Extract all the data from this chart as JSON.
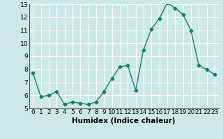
{
  "x": [
    0,
    1,
    2,
    3,
    4,
    5,
    6,
    7,
    8,
    9,
    10,
    11,
    12,
    13,
    14,
    15,
    16,
    17,
    18,
    19,
    20,
    21,
    22,
    23
  ],
  "y": [
    7.7,
    5.9,
    6.0,
    6.3,
    5.3,
    5.5,
    5.4,
    5.3,
    5.5,
    6.3,
    7.3,
    8.2,
    8.3,
    6.4,
    9.5,
    11.1,
    11.9,
    13.1,
    12.7,
    12.2,
    11.0,
    8.3,
    8.0,
    7.6
  ],
  "xlim": [
    -0.5,
    23.5
  ],
  "ylim": [
    5,
    13
  ],
  "yticks": [
    5,
    6,
    7,
    8,
    9,
    10,
    11,
    12,
    13
  ],
  "xticks": [
    0,
    1,
    2,
    3,
    4,
    5,
    6,
    7,
    8,
    9,
    10,
    11,
    12,
    13,
    14,
    15,
    16,
    17,
    18,
    19,
    20,
    21,
    22,
    23
  ],
  "xlabel": "Humidex (Indice chaleur)",
  "line_color": "#1a7a6e",
  "marker": "D",
  "marker_size": 2.5,
  "bg_color": "#cce8e8",
  "grid_color": "#ffffff",
  "tick_fontsize": 6.5,
  "label_fontsize": 7.5
}
